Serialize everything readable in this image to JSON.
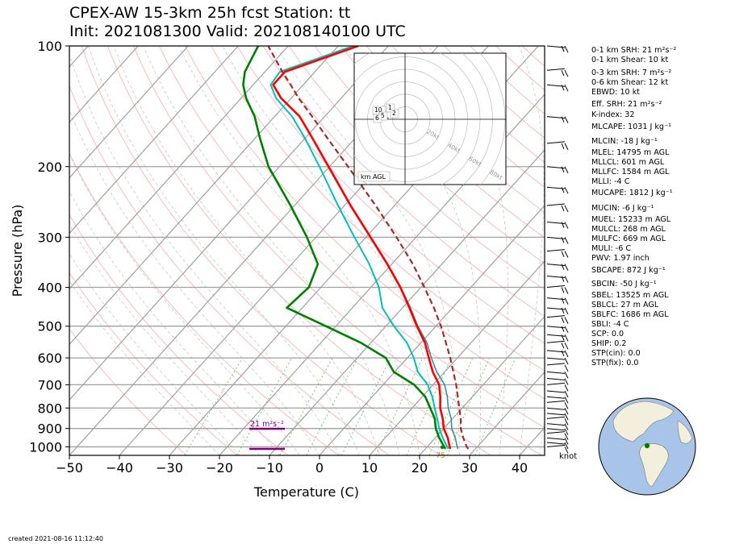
{
  "header": {
    "title_line1": "CPEX-AW 15-3km  25h fcst  Station: tt",
    "title_line2": "Init: 2021081300  Valid: 202108140100 UTC"
  },
  "footer": {
    "created": "created 2021-08-16 11:12:40"
  },
  "colors": {
    "temperature": "#ff0000",
    "dewpoint": "#008000",
    "wetbulb": "#00bfbf",
    "virtual_temp": "#3a8f9a",
    "parcel": "#a52a2a",
    "srh_marker": "#800080",
    "isobar": "#a0a0a0",
    "isotherm": "#a0a0a0",
    "dry_adiabat": "#f4a6a6",
    "moist_adiabat": "#c8c8c8",
    "mixing_ratio": "#7fbf7f",
    "globe_ocean": "#a8c4e8",
    "globe_land": "#f2f0dc"
  },
  "chart_data": {
    "type": "skewt",
    "xlabel": "Temperature (C)",
    "ylabel": "Pressure (hPa)",
    "xlim": [
      -50,
      45
    ],
    "ylim": [
      1050,
      100
    ],
    "x_ticks": [
      -50,
      -40,
      -30,
      -20,
      -10,
      0,
      10,
      20,
      30,
      40
    ],
    "y_ticks": [
      100,
      200,
      300,
      400,
      500,
      600,
      700,
      800,
      900,
      1000
    ],
    "y_scale": "log",
    "grid": true,
    "temperature": [
      [
        1012,
        25
      ],
      [
        1000,
        24.5
      ],
      [
        950,
        22.5
      ],
      [
        900,
        20
      ],
      [
        850,
        18
      ],
      [
        800,
        15.6
      ],
      [
        750,
        13.6
      ],
      [
        700,
        11.2
      ],
      [
        650,
        7.6
      ],
      [
        600,
        4.3
      ],
      [
        550,
        0.8
      ],
      [
        500,
        -3.8
      ],
      [
        450,
        -8.6
      ],
      [
        400,
        -14.1
      ],
      [
        350,
        -20.9
      ],
      [
        300,
        -29.1
      ],
      [
        250,
        -38.8
      ],
      [
        200,
        -50.2
      ],
      [
        170,
        -58.5
      ],
      [
        150,
        -65
      ],
      [
        135,
        -72
      ],
      [
        125,
        -76
      ],
      [
        116,
        -76
      ],
      [
        100,
        -66
      ]
    ],
    "dewpoint": [
      [
        1012,
        24
      ],
      [
        1000,
        23.4
      ],
      [
        950,
        20.8
      ],
      [
        900,
        18.4
      ],
      [
        850,
        16.4
      ],
      [
        800,
        13.6
      ],
      [
        750,
        10.6
      ],
      [
        700,
        6.2
      ],
      [
        650,
        -0.2
      ],
      [
        600,
        -4.3
      ],
      [
        550,
        -12
      ],
      [
        500,
        -22
      ],
      [
        450,
        -33.1
      ],
      [
        400,
        -32.4
      ],
      [
        350,
        -34.8
      ],
      [
        300,
        -41.8
      ],
      [
        250,
        -50.8
      ],
      [
        200,
        -62.2
      ],
      [
        170,
        -69
      ],
      [
        150,
        -74
      ],
      [
        135,
        -79
      ],
      [
        125,
        -82
      ],
      [
        116,
        -84
      ],
      [
        100,
        -86
      ]
    ],
    "wetbulb": [
      [
        1012,
        24.6
      ],
      [
        1000,
        24
      ],
      [
        950,
        21.5
      ],
      [
        900,
        19.1
      ],
      [
        850,
        16.9
      ],
      [
        800,
        14.5
      ],
      [
        750,
        12
      ],
      [
        700,
        8.9
      ],
      [
        650,
        4.6
      ],
      [
        600,
        1.3
      ],
      [
        550,
        -2.8
      ],
      [
        500,
        -8.4
      ],
      [
        450,
        -14
      ],
      [
        400,
        -18.4
      ],
      [
        350,
        -24.5
      ],
      [
        300,
        -32.3
      ],
      [
        250,
        -41.3
      ],
      [
        200,
        -52
      ],
      [
        170,
        -60
      ],
      [
        150,
        -66.5
      ],
      [
        135,
        -73
      ],
      [
        125,
        -76.5
      ],
      [
        116,
        -77
      ],
      [
        100,
        -67
      ]
    ],
    "virtual_temp": [
      [
        1012,
        26.5
      ],
      [
        1000,
        26
      ],
      [
        950,
        24
      ],
      [
        900,
        21.6
      ],
      [
        850,
        19.7
      ],
      [
        800,
        17.2
      ],
      [
        750,
        15
      ],
      [
        700,
        12.3
      ],
      [
        650,
        8.4
      ],
      [
        600,
        4.8
      ],
      [
        550,
        1.2
      ],
      [
        500,
        -3.6
      ],
      [
        450,
        -8.4
      ],
      [
        400,
        -14
      ],
      [
        350,
        -20.8
      ],
      [
        300,
        -29
      ],
      [
        250,
        -38.7
      ],
      [
        200,
        -50.1
      ],
      [
        170,
        -58.5
      ],
      [
        150,
        -65
      ],
      [
        135,
        -72
      ],
      [
        125,
        -76
      ],
      [
        116,
        -76
      ],
      [
        100,
        -66
      ]
    ],
    "parcel": [
      [
        1012,
        28.6
      ],
      [
        1000,
        27.9
      ],
      [
        950,
        25.6
      ],
      [
        900,
        23.4
      ],
      [
        850,
        21.6
      ],
      [
        800,
        19.4
      ],
      [
        750,
        17.1
      ],
      [
        700,
        14.6
      ],
      [
        650,
        11.7
      ],
      [
        600,
        8.6
      ],
      [
        550,
        5
      ],
      [
        500,
        1
      ],
      [
        450,
        -3.7
      ],
      [
        400,
        -9.3
      ],
      [
        350,
        -15.8
      ],
      [
        300,
        -23.9
      ],
      [
        250,
        -33.8
      ],
      [
        200,
        -46.3
      ],
      [
        170,
        -55.5
      ],
      [
        150,
        -62.5
      ],
      [
        135,
        -68.5
      ],
      [
        125,
        -72.5
      ],
      [
        116,
        -76.5
      ],
      [
        100,
        -84
      ]
    ],
    "wind_barbs_note": "wind barbs in knots along right edge",
    "wind_unit_label": "knot",
    "srh_label": "21 m²s⁻²",
    "lcl_label": "75",
    "hodograph": {
      "rings": [
        "20kt",
        "40kt",
        "60kt",
        "80kt"
      ],
      "legend": "km AGL",
      "height_labels": [
        "10",
        "1",
        "5",
        "2",
        "6"
      ],
      "trace": [
        [
          -3,
          0
        ],
        [
          -2,
          3
        ],
        [
          1,
          4
        ],
        [
          -1,
          2
        ],
        [
          2,
          1
        ],
        [
          -4,
          -1
        ],
        [
          -5,
          0
        ]
      ]
    }
  },
  "stats": [
    "0-1 km SRH: 21 m²s⁻²",
    "0-1 km Shear: 10 kt",
    "0-3 km SRH: 7 m²s⁻²",
    "0-6 km Shear: 12 kt",
    "EBWD: 10 kt",
    "Eff. SRH: 21 m²s⁻²",
    "K-index: 32",
    "MLCAPE: 1031 J kg⁻¹",
    "MLCIN: -18 J kg⁻¹",
    "MLEL: 14795 m AGL",
    "MLLCL: 601 m AGL",
    "MLLFC: 1584 m AGL",
    "MLLI: -4 C",
    "MUCAPE: 1812 J kg⁻¹",
    "MUCIN: -6 J kg⁻¹",
    "MUEL: 15233 m AGL",
    "MULCL: 268 m AGL",
    "MULFC: 669 m AGL",
    "MULI: -6 C",
    "PWV: 1.97 inch",
    "SBCAPE: 872 J kg⁻¹",
    "SBCIN: -50 J kg⁻¹",
    "SBEL: 13525 m AGL",
    "SBLCL: 27 m AGL",
    "SBLFC: 1686 m AGL",
    "SBLI: -4 C",
    "SCP: 0.0",
    "SHIP: 0.2",
    "STP(cin): 0.0",
    "STP(fix): 0.0"
  ]
}
